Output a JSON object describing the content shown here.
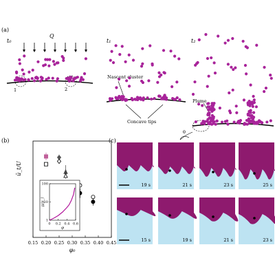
{
  "panel_a": {
    "label": "(a)",
    "t0": "t₀",
    "q": "Q",
    "t1": "t₁",
    "t2": "t₂",
    "site1": "1",
    "site2": "2",
    "nascent_cluster": "Nascent cluster",
    "concave_tips": "Concave tips",
    "plume": "Plume",
    "theta": "θ"
  },
  "panel_b": {
    "label": "(b)"
  },
  "chart_data": [
    {
      "type": "scatter",
      "xlabel": "φ₀",
      "ylabel": "ū_t/U",
      "xlim": [
        0.15,
        0.45
      ],
      "xticks": [
        0.15,
        {
          "value": 0.2,
          "label": "0.20"
        },
        0.25,
        {
          "value": 0.3,
          "label": "0.30"
        },
        0.35,
        {
          "value": 0.4,
          "label": "0.40"
        },
        0.45
      ],
      "ylim": [
        0,
        1
      ],
      "markers": [
        "square",
        "diamond",
        "triangle",
        "circle",
        "circle"
      ],
      "series": [
        {
          "fill": true,
          "colors": [
            "#c0609a",
            "#555555",
            "#444444",
            "#000000",
            "#000000"
          ],
          "x": [
            0.2,
            0.25,
            0.275,
            0.33,
            0.38
          ],
          "values": [
            0.84,
            0.83,
            0.68,
            0.46,
            0.37
          ],
          "errors": [
            0.04,
            0.03,
            0.07,
            0.05,
            0.04
          ]
        },
        {
          "fill": false,
          "colors": [
            "#000000",
            "#000000",
            "#000000",
            "#000000",
            "#000000"
          ],
          "x": [
            0.2,
            0.25,
            0.275,
            0.33,
            0.38
          ],
          "values": [
            0.76,
            0.79,
            0.64,
            0.54,
            0.42
          ]
        }
      ]
    },
    {
      "type": "line",
      "xlabel": "φ",
      "ylabel": "μ/μ_l",
      "xlim": [
        0,
        0.6
      ],
      "xticks": [
        0,
        0.2,
        0.4,
        0.6
      ],
      "ylim": [
        1,
        100
      ],
      "yticks": [
        1,
        10,
        100
      ],
      "log_y": true,
      "x": [
        0,
        0.1,
        0.2,
        0.3,
        0.4,
        0.45,
        0.5,
        0.55,
        0.58
      ],
      "series": [
        {
          "color": "#b0149a",
          "values": [
            1,
            1.3,
            1.8,
            2.8,
            5,
            7,
            12,
            25,
            60
          ]
        }
      ]
    }
  ],
  "panel_c": {
    "label": "(c)",
    "row1": [
      "19 s",
      "21 s",
      "23 s",
      "25 s"
    ],
    "row2": [
      "15 s",
      "19 s",
      "21 s",
      "23 s"
    ]
  }
}
